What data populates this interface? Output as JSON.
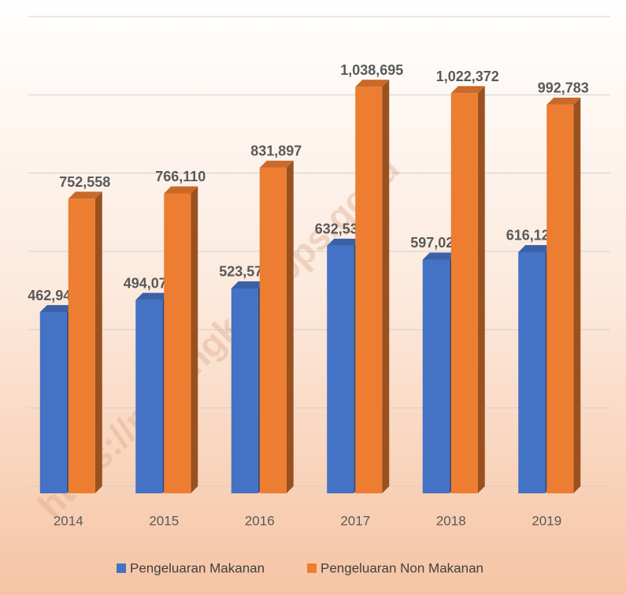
{
  "chart_data": {
    "type": "bar3d",
    "categories": [
      "2014",
      "2015",
      "2016",
      "2017",
      "2018",
      "2019"
    ],
    "series": [
      {
        "name": "Pengeluaran Makanan",
        "color": "#4472c4",
        "values": [
          462944,
          494076,
          523578,
          632530,
          597020,
          616123
        ],
        "value_labels": [
          "462,944",
          "494,076",
          "523,578",
          "632,530",
          "597,020",
          "616,123"
        ]
      },
      {
        "name": "Pengeluaran Non Makanan",
        "color": "#ed7d31",
        "values": [
          752558,
          766110,
          831897,
          1038695,
          1022372,
          992783
        ],
        "value_labels": [
          "752,558",
          "766,110",
          "831,897",
          "1,038,695",
          "1,022,372",
          "992,783"
        ]
      }
    ],
    "ylim": [
      0,
      1200000
    ],
    "yticks": [
      0,
      200000,
      400000,
      600000,
      800000,
      1000000,
      1200000
    ],
    "grid": true,
    "legend": "bottom",
    "watermark": "https://malangkota.bps.go.id"
  }
}
